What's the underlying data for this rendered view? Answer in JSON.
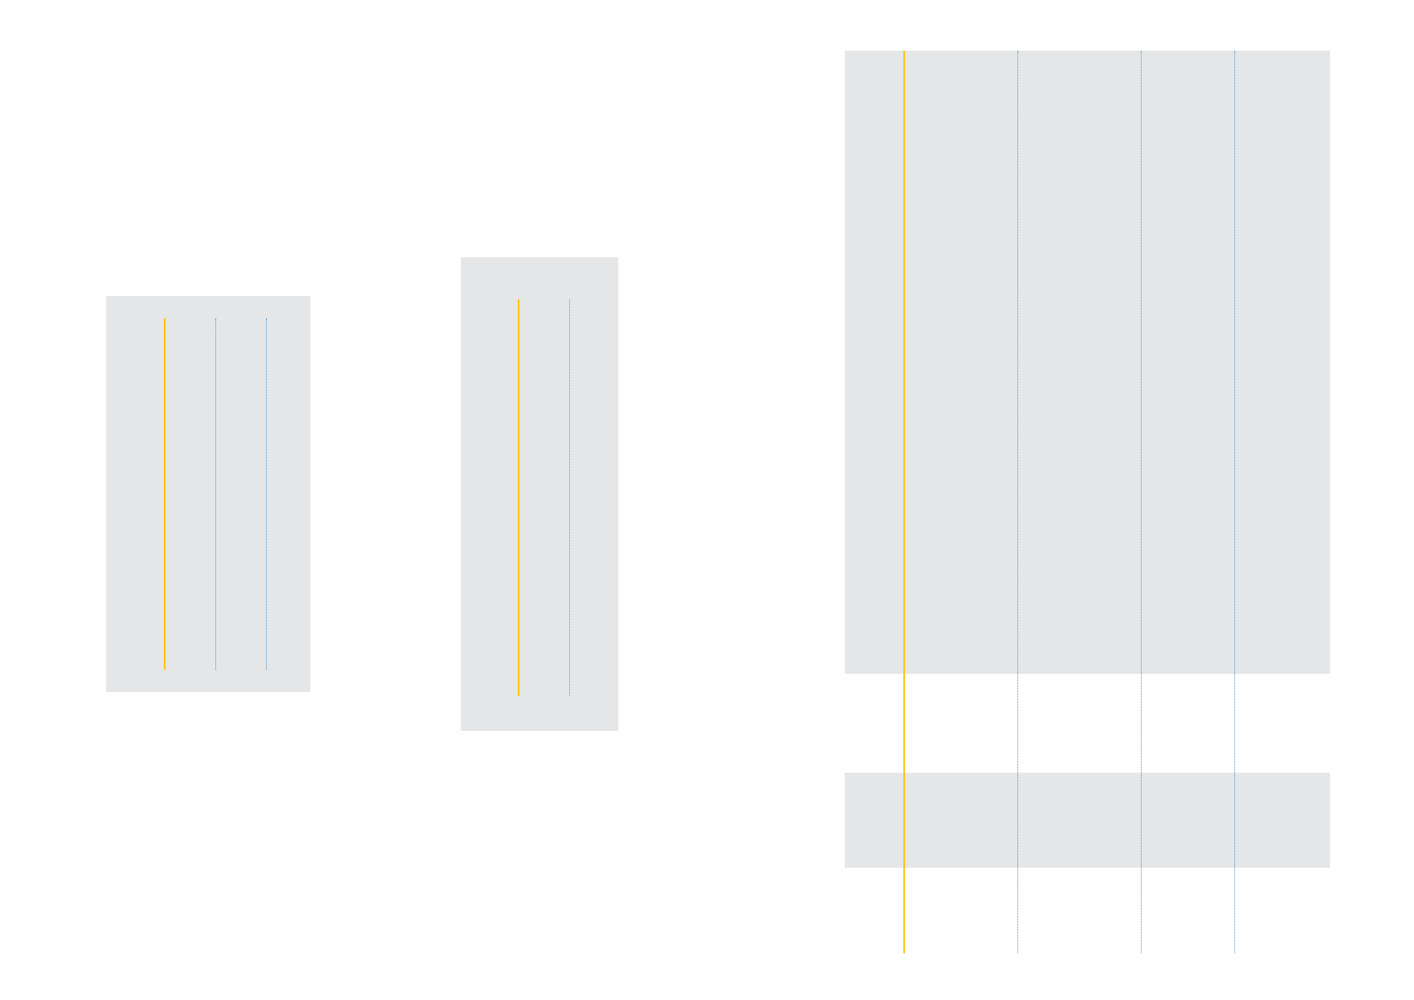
{
  "colors": {
    "background": "#fefefe",
    "panel_fill": "#e5e6e7",
    "primary_guide": "#fac412",
    "secondary_guide": "#4a8fc8"
  },
  "layouts": [
    {
      "id": "layout-1",
      "panels": 1,
      "guides": {
        "solid": 1,
        "dotted": 2
      }
    },
    {
      "id": "layout-2",
      "panels": 1,
      "guides": {
        "solid": 1,
        "dotted": 1
      }
    },
    {
      "id": "layout-3",
      "panels": 2,
      "guides": {
        "solid": 1,
        "dotted": 3
      }
    }
  ]
}
